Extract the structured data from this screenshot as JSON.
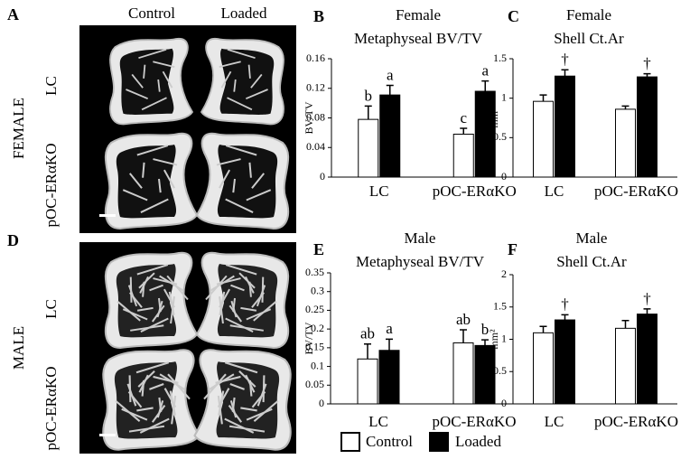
{
  "figure": {
    "panels": [
      {
        "label": "A",
        "group": "FEMALE",
        "columns": [
          "Control",
          "Loaded"
        ],
        "rows": [
          "LC",
          "pOC-ERαKO"
        ]
      },
      {
        "label": "D",
        "group": "MALE",
        "rows": [
          "LC",
          "pOC-ERαKO"
        ]
      }
    ]
  },
  "chart_data": [
    {
      "type": "bar",
      "label": "B",
      "title": "Female",
      "subtitle": "Metaphyseal BV/TV",
      "ylabel": "BV/TV",
      "categories": [
        "LC",
        "pOC-ERαKO"
      ],
      "ylim": [
        0,
        0.16
      ],
      "yticks": [
        0,
        0.04,
        0.08,
        0.12,
        0.16
      ],
      "series": [
        {
          "color": "#ffffff",
          "values": [
            0.078,
            0.058
          ],
          "errors": [
            0.018,
            0.008
          ],
          "labels": [
            "b",
            "c"
          ]
        },
        {
          "color": "#000000",
          "values": [
            0.111,
            0.116
          ],
          "errors": [
            0.013,
            0.014
          ],
          "labels": [
            "a",
            "a"
          ]
        }
      ]
    },
    {
      "type": "bar",
      "label": "C",
      "title": "Female",
      "subtitle": "Shell Ct.Ar",
      "ylabel": "mm²",
      "categories": [
        "LC",
        "pOC-ERαKO"
      ],
      "ylim": [
        0,
        1.5
      ],
      "yticks": [
        0,
        0.5,
        1,
        1.5
      ],
      "series": [
        {
          "color": "#ffffff",
          "values": [
            0.96,
            0.86
          ],
          "errors": [
            0.08,
            0.04
          ]
        },
        {
          "color": "#000000",
          "values": [
            1.28,
            1.27
          ],
          "errors": [
            0.08,
            0.04
          ],
          "labels": [
            "†",
            "†"
          ]
        }
      ]
    },
    {
      "type": "bar",
      "label": "E",
      "title": "Male",
      "subtitle": "Metaphyseal BV/TV",
      "ylabel": "BV/TV",
      "categories": [
        "LC",
        "pOC-ERαKO"
      ],
      "ylim": [
        0,
        0.35
      ],
      "yticks": [
        0,
        0.05,
        0.1,
        0.15,
        0.2,
        0.25,
        0.3,
        0.35
      ],
      "series": [
        {
          "color": "#ffffff",
          "values": [
            0.12,
            0.163
          ],
          "errors": [
            0.04,
            0.035
          ],
          "labels": [
            "ab",
            "ab"
          ]
        },
        {
          "color": "#000000",
          "values": [
            0.143,
            0.156
          ],
          "errors": [
            0.03,
            0.015
          ],
          "labels": [
            "a",
            "b"
          ]
        }
      ]
    },
    {
      "type": "bar",
      "label": "F",
      "title": "Male",
      "subtitle": "Shell Ct.Ar",
      "ylabel": "mm²",
      "categories": [
        "LC",
        "pOC-ERαKO"
      ],
      "ylim": [
        0,
        2
      ],
      "yticks": [
        0,
        0.5,
        1,
        1.5,
        2
      ],
      "series": [
        {
          "name": "Control",
          "color": "#ffffff",
          "values": [
            1.1,
            1.17
          ],
          "errors": [
            0.1,
            0.12
          ]
        },
        {
          "name": "Loaded",
          "color": "#000000",
          "values": [
            1.3,
            1.39
          ],
          "errors": [
            0.08,
            0.08
          ],
          "labels": [
            "†",
            "†"
          ]
        }
      ]
    }
  ]
}
